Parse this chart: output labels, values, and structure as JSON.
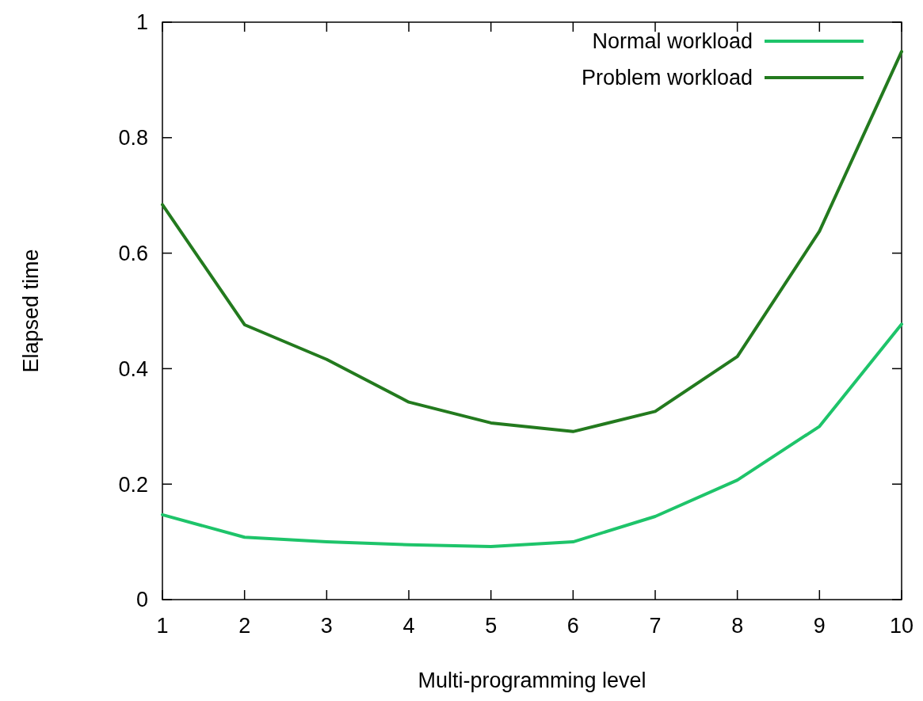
{
  "chart_data": {
    "type": "line",
    "xlabel": "Multi-programming level",
    "ylabel": "Elapsed time",
    "x": [
      1,
      2,
      3,
      4,
      5,
      6,
      7,
      8,
      9,
      10
    ],
    "series": [
      {
        "name": "Normal workload",
        "color": "#1ec46a",
        "values": [
          0.147,
          0.108,
          0.1,
          0.095,
          0.092,
          0.1,
          0.144,
          0.207,
          0.3,
          0.477
        ]
      },
      {
        "name": "Problem workload",
        "color": "#237a1e",
        "values": [
          0.684,
          0.476,
          0.416,
          0.342,
          0.306,
          0.291,
          0.326,
          0.421,
          0.638,
          0.949
        ]
      }
    ],
    "xlim": [
      1,
      10
    ],
    "xticks": [
      1,
      2,
      3,
      4,
      5,
      6,
      7,
      8,
      9,
      10
    ],
    "ylim": [
      0,
      1
    ],
    "yticks": [
      0,
      0.2,
      0.4,
      0.6,
      0.8,
      1
    ],
    "grid": false,
    "legend": "top right",
    "marker": "none",
    "line_style": "solid"
  }
}
